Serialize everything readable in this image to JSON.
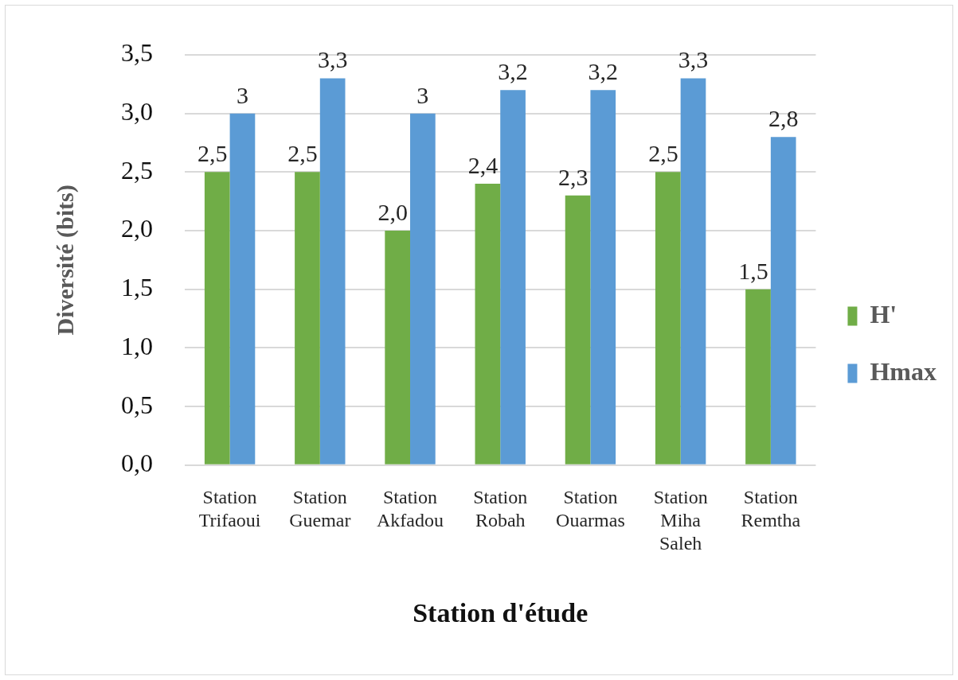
{
  "chart_data": {
    "type": "bar",
    "xlabel": "Station d'étude",
    "ylabel": "Diversité (bits)",
    "categories": [
      "Station Trifaoui",
      "Station Guemar",
      "Station Akfadou",
      "Station Robah",
      "Station Ouarmas",
      "Station Miha Saleh",
      "Station Remtha"
    ],
    "series": [
      {
        "name": "H'",
        "color": "#70ad47",
        "values": [
          2.5,
          2.5,
          2.0,
          2.4,
          2.3,
          2.5,
          1.5
        ],
        "value_labels": [
          "2,5",
          "2,5",
          "2,0",
          "2,4",
          "2,3",
          "2,5",
          "1,5"
        ]
      },
      {
        "name": "Hmax",
        "color": "#5b9bd5",
        "values": [
          3,
          3.3,
          3,
          3.2,
          3.2,
          3.3,
          2.8
        ],
        "value_labels": [
          "3",
          "3,3",
          "3",
          "3,2",
          "3,2",
          "3,3",
          "2,8"
        ]
      }
    ],
    "ylim": [
      0,
      3.5
    ],
    "yticks": [
      {
        "value": 0,
        "label": "0,0"
      },
      {
        "value": 0.5,
        "label": "0,5"
      },
      {
        "value": 1,
        "label": "1,0"
      },
      {
        "value": 1.5,
        "label": "1,5"
      },
      {
        "value": 2,
        "label": "2,0"
      },
      {
        "value": 2.5,
        "label": "2,5"
      },
      {
        "value": 3,
        "label": "3,0"
      },
      {
        "value": 3.5,
        "label": "3,5"
      }
    ],
    "grid": "y",
    "legend": "right"
  }
}
